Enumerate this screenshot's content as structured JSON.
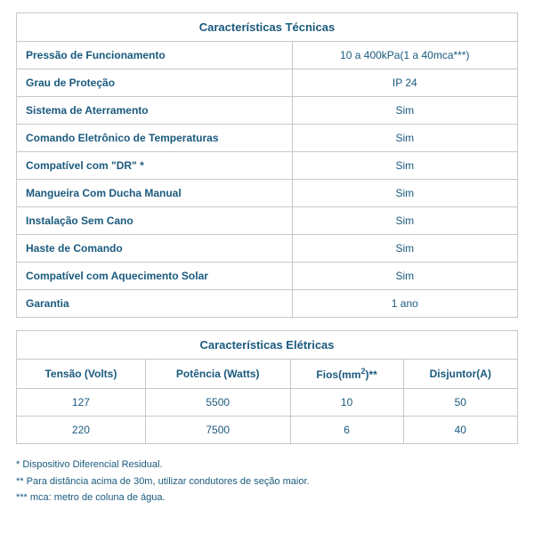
{
  "tech": {
    "title": "Características Técnicas",
    "rows": [
      {
        "label": "Pressão de Funcionamento",
        "value": "10 a 400kPa(1 a 40mca***)"
      },
      {
        "label": "Grau de Proteção",
        "value": "IP 24"
      },
      {
        "label": "Sistema de Aterramento",
        "value": "Sim"
      },
      {
        "label": "Comando Eletrônico de Temperaturas",
        "value": "Sim"
      },
      {
        "label": "Compatível com \"DR\" *",
        "value": "Sim"
      },
      {
        "label": "Mangueira Com Ducha Manual",
        "value": "Sim"
      },
      {
        "label": "Instalação Sem Cano",
        "value": "Sim"
      },
      {
        "label": "Haste de Comando",
        "value": "Sim"
      },
      {
        "label": "Compatível com Aquecimento Solar",
        "value": "Sim"
      },
      {
        "label": "Garantia",
        "value": "1 ano"
      }
    ],
    "border_color": "#c8c8c8",
    "text_color": "#1a5a7e"
  },
  "elec": {
    "title": "Características Elétricas",
    "columns": [
      "Tensão (Volts)",
      "Potência (Watts)",
      "Fios(mm²)**",
      "Disjuntor(A)"
    ],
    "rows": [
      [
        "127",
        "5500",
        "10",
        "50"
      ],
      [
        "220",
        "7500",
        "6",
        "40"
      ]
    ]
  },
  "footnotes": [
    "* Dispositivo Diferencial Residual.",
    "** Para distância acima de 30m, utilizar condutores de seção maior.",
    "*** mca: metro de coluna de água."
  ]
}
